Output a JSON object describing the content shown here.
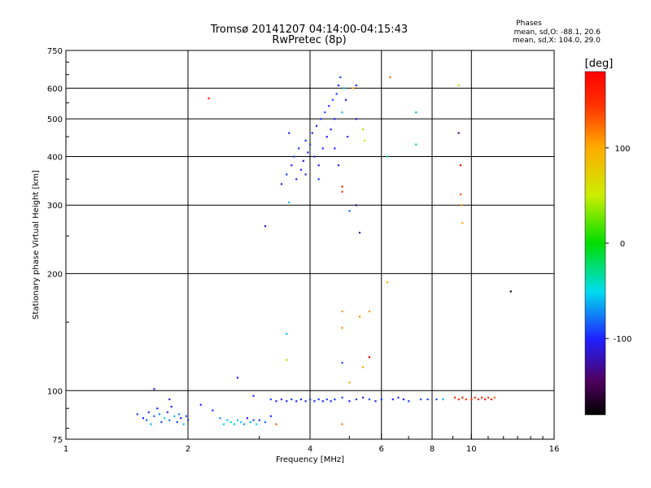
{
  "chart_data": {
    "type": "scatter",
    "title": "Tromsø 20141207 04:14:00-04:15:43",
    "subtitle": "RwPretec (8p)",
    "xlabel": "Frequency [MHz]",
    "ylabel": "Stationary phase Virtual Height [km]",
    "x_scale": "log2",
    "y_scale": "log",
    "xlim": [
      1,
      16
    ],
    "ylim": [
      75,
      750
    ],
    "x_ticks": [
      1,
      2,
      4,
      6,
      8,
      10,
      16
    ],
    "x_tick_labels": [
      "1",
      "2",
      "4",
      "6",
      "8",
      "10",
      "16"
    ],
    "y_ticks": [
      75,
      100,
      200,
      300,
      400,
      500,
      600,
      750
    ],
    "y_tick_labels": [
      "75",
      "100",
      "200",
      "300",
      "400",
      "500",
      "600",
      "750"
    ],
    "grid": true,
    "phases_info": {
      "heading": "Phases",
      "line1": "mean, sd,O: -88.1, 20.6",
      "line2": "mean, sd,X: 104.0, 29.0"
    },
    "colorbar": {
      "label": "[deg]",
      "min": -180,
      "max": 180,
      "ticks": [
        100,
        0,
        -100
      ],
      "tick_labels": [
        "100",
        "0",
        "-100"
      ]
    },
    "series": [
      {
        "marker": "dot",
        "points": [
          [
            1.5,
            87,
            -90
          ],
          [
            1.55,
            85,
            -100
          ],
          [
            1.58,
            84,
            -80
          ],
          [
            1.6,
            88,
            -95
          ],
          [
            1.62,
            82,
            -60
          ],
          [
            1.65,
            86,
            -85
          ],
          [
            1.68,
            90,
            -100
          ],
          [
            1.7,
            87,
            -70
          ],
          [
            1.72,
            83,
            -90
          ],
          [
            1.75,
            85,
            -50
          ],
          [
            1.78,
            88,
            -95
          ],
          [
            1.8,
            84,
            -80
          ],
          [
            1.82,
            91,
            -100
          ],
          [
            1.85,
            86,
            -60
          ],
          [
            1.88,
            83,
            -90
          ],
          [
            1.9,
            87,
            -75
          ],
          [
            1.92,
            85,
            -100
          ],
          [
            1.95,
            82,
            -55
          ],
          [
            1.98,
            86,
            -85
          ],
          [
            2.0,
            84,
            -95
          ],
          [
            1.65,
            101,
            -100
          ],
          [
            1.8,
            95,
            -110
          ],
          [
            2.15,
            92,
            -100
          ],
          [
            2.3,
            89,
            -95
          ],
          [
            2.4,
            85,
            -70
          ],
          [
            2.45,
            82,
            -50
          ],
          [
            2.5,
            84,
            -60
          ],
          [
            2.55,
            83,
            -45
          ],
          [
            2.6,
            82,
            -55
          ],
          [
            2.65,
            84,
            -60
          ],
          [
            2.7,
            83,
            -50
          ],
          [
            2.75,
            82,
            -70
          ],
          [
            2.8,
            85,
            -100
          ],
          [
            2.85,
            83,
            -60
          ],
          [
            2.9,
            84,
            -90
          ],
          [
            2.95,
            82,
            -50
          ],
          [
            3.0,
            84,
            -95
          ],
          [
            3.1,
            83,
            -80
          ],
          [
            3.2,
            86,
            -100
          ],
          [
            2.65,
            108,
            -100
          ],
          [
            2.9,
            97,
            -100
          ],
          [
            3.2,
            95,
            -90
          ],
          [
            3.3,
            94,
            -100
          ],
          [
            3.4,
            95,
            -95
          ],
          [
            3.5,
            94,
            -100
          ],
          [
            3.6,
            95,
            -90
          ],
          [
            3.7,
            94,
            -100
          ],
          [
            3.8,
            95,
            -95
          ],
          [
            3.9,
            94,
            -100
          ],
          [
            4.0,
            95,
            -90
          ],
          [
            4.1,
            94,
            -100
          ],
          [
            4.2,
            95,
            -95
          ],
          [
            4.3,
            94,
            -100
          ],
          [
            4.4,
            95,
            -90
          ],
          [
            4.5,
            94,
            -100
          ],
          [
            4.6,
            95,
            -95
          ],
          [
            4.8,
            96,
            -90
          ],
          [
            5.0,
            94,
            -100
          ],
          [
            5.2,
            95,
            -95
          ],
          [
            5.4,
            96,
            -100
          ],
          [
            5.6,
            95,
            -90
          ],
          [
            5.8,
            94,
            -100
          ],
          [
            6.0,
            95,
            -95
          ],
          [
            6.4,
            95,
            -100
          ],
          [
            6.6,
            96,
            -95
          ],
          [
            6.8,
            95,
            -100
          ],
          [
            7.0,
            94,
            -90
          ],
          [
            7.5,
            95,
            -85
          ],
          [
            7.8,
            95,
            -95
          ],
          [
            8.2,
            95,
            -90
          ],
          [
            8.5,
            95,
            -60
          ],
          [
            9.1,
            96,
            150
          ],
          [
            9.3,
            95,
            145
          ],
          [
            9.5,
            96,
            155
          ],
          [
            9.7,
            95,
            140
          ],
          [
            10.0,
            95,
            150
          ],
          [
            10.2,
            96,
            148
          ],
          [
            10.4,
            95,
            152
          ],
          [
            10.6,
            96,
            145
          ],
          [
            10.8,
            95,
            155
          ],
          [
            11.0,
            96,
            140
          ],
          [
            11.2,
            95,
            150
          ],
          [
            11.4,
            96,
            120
          ],
          [
            3.4,
            340,
            -100
          ],
          [
            3.5,
            360,
            -95
          ],
          [
            3.6,
            380,
            -100
          ],
          [
            3.65,
            400,
            -90
          ],
          [
            3.7,
            350,
            -100
          ],
          [
            3.75,
            420,
            -95
          ],
          [
            3.8,
            370,
            -100
          ],
          [
            3.85,
            390,
            -110
          ],
          [
            3.9,
            440,
            -95
          ],
          [
            3.95,
            410,
            -100
          ],
          [
            4.0,
            430,
            -90
          ],
          [
            4.05,
            460,
            -100
          ],
          [
            4.1,
            400,
            -95
          ],
          [
            4.15,
            480,
            -100
          ],
          [
            4.2,
            380,
            -110
          ],
          [
            4.25,
            500,
            -95
          ],
          [
            4.3,
            420,
            -100
          ],
          [
            4.35,
            520,
            -90
          ],
          [
            4.4,
            450,
            -100
          ],
          [
            4.45,
            540,
            -95
          ],
          [
            4.5,
            470,
            -100
          ],
          [
            4.55,
            560,
            -90
          ],
          [
            4.6,
            500,
            -100
          ],
          [
            4.65,
            580,
            -95
          ],
          [
            4.7,
            610,
            -100
          ],
          [
            4.75,
            640,
            -90
          ],
          [
            4.8,
            520,
            -60
          ],
          [
            4.85,
            600,
            -40
          ],
          [
            4.9,
            560,
            -100
          ],
          [
            4.95,
            450,
            -95
          ],
          [
            3.55,
            460,
            -100
          ],
          [
            3.9,
            360,
            -100
          ],
          [
            4.2,
            350,
            -95
          ],
          [
            4.6,
            420,
            -100
          ],
          [
            4.7,
            380,
            -100
          ],
          [
            5.1,
            600,
            100
          ],
          [
            5.2,
            610,
            -100
          ],
          [
            5.4,
            470,
            40
          ],
          [
            5.45,
            440,
            60
          ],
          [
            5.2,
            500,
            -110
          ],
          [
            6.3,
            640,
            120
          ],
          [
            7.3,
            520,
            -60
          ],
          [
            7.3,
            430,
            -30
          ],
          [
            9.3,
            610,
            40
          ],
          [
            9.3,
            460,
            -130
          ],
          [
            9.4,
            380,
            170
          ],
          [
            9.4,
            320,
            130
          ],
          [
            9.45,
            300,
            110
          ],
          [
            9.5,
            270,
            100
          ],
          [
            3.55,
            305,
            -60
          ],
          [
            3.1,
            265,
            -120
          ],
          [
            5.0,
            290,
            -80
          ],
          [
            5.2,
            300,
            -130
          ],
          [
            5.3,
            255,
            -130
          ],
          [
            4.8,
            325,
            140
          ],
          [
            4.8,
            335,
            150
          ],
          [
            6.2,
            400,
            -30
          ],
          [
            2.25,
            565,
            160
          ],
          [
            6.2,
            190,
            100
          ],
          [
            12.5,
            180,
            -170
          ],
          [
            4.8,
            160,
            110
          ],
          [
            5.3,
            155,
            110
          ],
          [
            5.6,
            160,
            110
          ],
          [
            4.8,
            145,
            110
          ],
          [
            3.5,
            140,
            -60
          ],
          [
            3.5,
            120,
            40
          ],
          [
            4.8,
            118,
            -90
          ],
          [
            5.6,
            122,
            180
          ],
          [
            5.4,
            115,
            100
          ],
          [
            5.0,
            105,
            100
          ],
          [
            4.8,
            82,
            120
          ],
          [
            3.3,
            82,
            130
          ]
        ]
      }
    ]
  }
}
